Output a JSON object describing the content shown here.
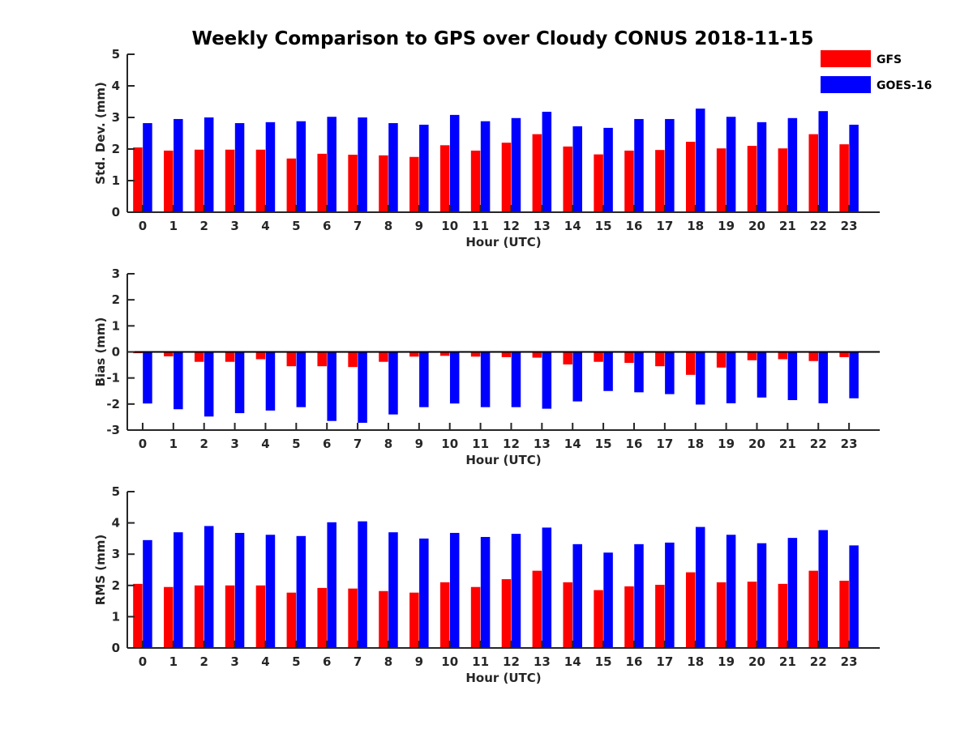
{
  "chart_data": {
    "title": "Weekly Comparison to GPS over Cloudy CONUS 2018-11-15",
    "legend": {
      "placement": "top-right",
      "entries": [
        {
          "name": "GFS",
          "color": "#ff0000"
        },
        {
          "name": "GOES-16",
          "color": "#0000ff"
        }
      ]
    },
    "charts": [
      {
        "type": "bar",
        "ylabel": "Std. Dev. (mm)",
        "xlabel": "Hour (UTC)",
        "ylim": [
          0,
          5
        ],
        "yticks": [
          0,
          1,
          2,
          3,
          4,
          5
        ],
        "categories": [
          "0",
          "1",
          "2",
          "3",
          "4",
          "5",
          "6",
          "7",
          "8",
          "9",
          "10",
          "11",
          "12",
          "13",
          "14",
          "15",
          "16",
          "17",
          "18",
          "19",
          "20",
          "21",
          "22",
          "23"
        ],
        "series": [
          {
            "name": "GFS",
            "color": "#ff0000",
            "values": [
              2.05,
              1.95,
              1.98,
              1.98,
              1.98,
              1.7,
              1.85,
              1.82,
              1.8,
              1.75,
              2.12,
              1.95,
              2.2,
              2.47,
              2.08,
              1.83,
              1.95,
              1.97,
              2.23,
              2.02,
              2.1,
              2.02,
              2.47,
              2.15
            ]
          },
          {
            "name": "GOES-16",
            "color": "#0000ff",
            "values": [
              2.82,
              2.95,
              3.0,
              2.82,
              2.85,
              2.88,
              3.02,
              3.0,
              2.82,
              2.77,
              3.08,
              2.88,
              2.98,
              3.18,
              2.72,
              2.67,
              2.95,
              2.95,
              3.28,
              3.02,
              2.85,
              2.98,
              3.2,
              2.77
            ]
          }
        ]
      },
      {
        "type": "bar",
        "ylabel": "Bias (mm)",
        "xlabel": "Hour (UTC)",
        "ylim": [
          -3,
          3
        ],
        "yticks": [
          -3,
          -2,
          -1,
          0,
          1,
          2,
          3
        ],
        "zero_line": true,
        "categories": [
          "0",
          "1",
          "2",
          "3",
          "4",
          "5",
          "6",
          "7",
          "8",
          "9",
          "10",
          "11",
          "12",
          "13",
          "14",
          "15",
          "16",
          "17",
          "18",
          "19",
          "20",
          "21",
          "22",
          "23"
        ],
        "series": [
          {
            "name": "GFS",
            "color": "#ff0000",
            "values": [
              -0.05,
              -0.17,
              -0.38,
              -0.38,
              -0.28,
              -0.55,
              -0.55,
              -0.58,
              -0.38,
              -0.18,
              -0.15,
              -0.18,
              -0.2,
              -0.22,
              -0.48,
              -0.38,
              -0.42,
              -0.55,
              -0.88,
              -0.6,
              -0.32,
              -0.28,
              -0.35,
              -0.2
            ]
          },
          {
            "name": "GOES-16",
            "color": "#0000ff",
            "values": [
              -1.98,
              -2.2,
              -2.48,
              -2.35,
              -2.25,
              -2.12,
              -2.65,
              -2.72,
              -2.4,
              -2.12,
              -1.98,
              -2.12,
              -2.12,
              -2.18,
              -1.9,
              -1.5,
              -1.55,
              -1.62,
              -2.02,
              -1.97,
              -1.75,
              -1.85,
              -1.97,
              -1.78
            ]
          }
        ]
      },
      {
        "type": "bar",
        "ylabel": "RMS (mm)",
        "xlabel": "Hour (UTC)",
        "ylim": [
          0,
          5
        ],
        "yticks": [
          0,
          1,
          2,
          3,
          4,
          5
        ],
        "categories": [
          "0",
          "1",
          "2",
          "3",
          "4",
          "5",
          "6",
          "7",
          "8",
          "9",
          "10",
          "11",
          "12",
          "13",
          "14",
          "15",
          "16",
          "17",
          "18",
          "19",
          "20",
          "21",
          "22",
          "23"
        ],
        "series": [
          {
            "name": "GFS",
            "color": "#ff0000",
            "values": [
              2.05,
              1.95,
              2.0,
              2.0,
              2.0,
              1.77,
              1.92,
              1.9,
              1.82,
              1.77,
              2.1,
              1.95,
              2.2,
              2.47,
              2.1,
              1.85,
              1.97,
              2.02,
              2.42,
              2.1,
              2.12,
              2.05,
              2.47,
              2.15
            ]
          },
          {
            "name": "GOES-16",
            "color": "#0000ff",
            "values": [
              3.45,
              3.7,
              3.9,
              3.68,
              3.62,
              3.58,
              4.02,
              4.05,
              3.7,
              3.5,
              3.68,
              3.55,
              3.65,
              3.85,
              3.32,
              3.05,
              3.32,
              3.37,
              3.87,
              3.62,
              3.35,
              3.52,
              3.77,
              3.28
            ]
          }
        ]
      }
    ]
  }
}
